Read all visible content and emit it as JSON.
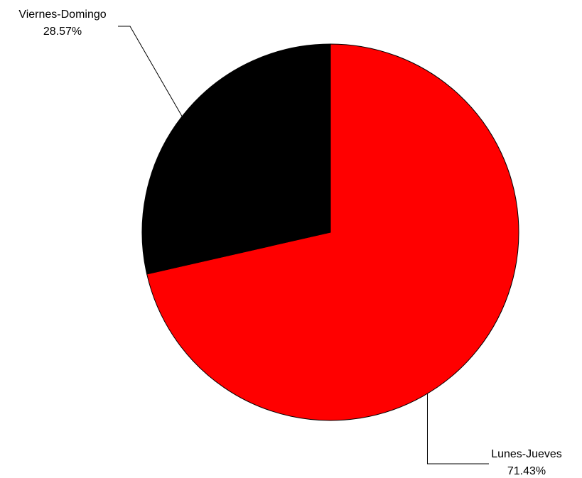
{
  "chart_data": {
    "type": "pie",
    "title": "",
    "slices": [
      {
        "label": "Lunes-Jueves",
        "percent_label": "71.43%",
        "value": 71.43,
        "color": "#ff0000"
      },
      {
        "label": "Viernes-Domingo",
        "percent_label": "28.57%",
        "value": 28.57,
        "color": "#000000"
      }
    ],
    "start_angle": "12 o'clock",
    "direction": "clockwise",
    "legend": "none",
    "outline_color": "#000000"
  }
}
